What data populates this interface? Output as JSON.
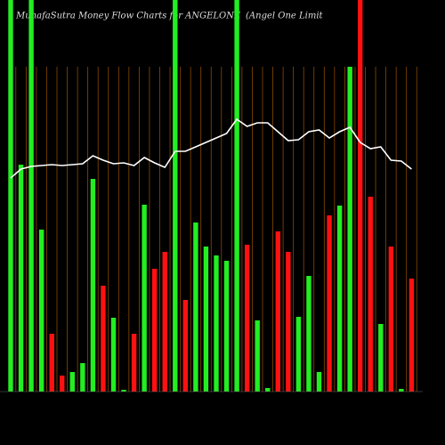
{
  "chart_data": {
    "type": "bar",
    "title": "MunafaSutra  Money Flow  Charts for ANGELONE",
    "subtitle": "(Angel One   Limit",
    "categories": [
      null,
      null,
      null,
      null,
      null,
      null,
      null,
      null,
      null,
      null,
      null,
      null,
      null,
      null,
      null,
      null,
      null,
      null,
      null,
      null,
      null,
      null,
      null,
      null,
      null,
      null,
      null,
      null,
      null,
      null,
      null,
      null,
      null,
      null,
      null,
      null,
      null,
      null,
      null,
      null
    ],
    "series": [
      {
        "name": null,
        "type": "bar",
        "values": [
          440,
          255,
          440,
          182,
          65,
          18,
          22,
          32,
          239,
          119,
          83,
          2,
          65,
          210,
          138,
          157,
          440,
          103,
          190,
          163,
          153,
          147,
          440,
          165,
          80,
          4,
          180,
          157,
          84,
          130,
          22,
          198,
          209,
          365,
          440,
          219,
          76,
          163,
          3,
          127
        ],
        "colors": [
          "#22ee22",
          "#22ee22",
          "#22ee22",
          "#22ee22",
          "#ff1111",
          "#ff1111",
          "#22ee22",
          "#22ee22",
          "#22ee22",
          "#ff1111",
          "#22ee22",
          "#22ee22",
          "#ff1111",
          "#22ee22",
          "#ff1111",
          "#ff1111",
          "#22ee22",
          "#ff1111",
          "#22ee22",
          "#22ee22",
          "#22ee22",
          "#22ee22",
          "#22ee22",
          "#ff1111",
          "#22ee22",
          "#22ee22",
          "#ff1111",
          "#ff1111",
          "#22ee22",
          "#22ee22",
          "#22ee22",
          "#ff1111",
          "#22ee22",
          "#22ee22",
          "#ff1111",
          "#ff1111",
          "#22ee22",
          "#ff1111",
          "#22ee22",
          "#ff1111"
        ]
      },
      {
        "name": null,
        "type": "line",
        "color": "#ffffff",
        "values": [
          240,
          250,
          253,
          254,
          255,
          254,
          255,
          256,
          265,
          260,
          256,
          257,
          254,
          263,
          257,
          252,
          270,
          270,
          275,
          280,
          285,
          290,
          306,
          298,
          302,
          302,
          292,
          282,
          283,
          292,
          294,
          285,
          292,
          297,
          280,
          273,
          275,
          260,
          259,
          250
        ]
      }
    ],
    "ylim": [
      0,
      440
    ],
    "background": "#000000",
    "grid_color": "#8a4a00"
  }
}
